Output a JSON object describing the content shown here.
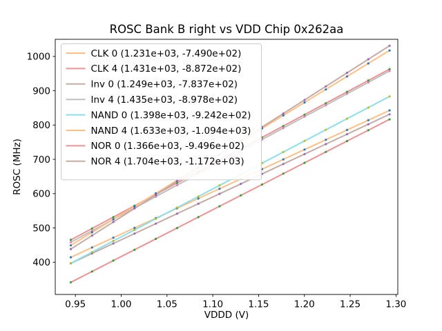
{
  "figure": {
    "title": "ROSC Bank B right vs VDD Chip 0x262aa",
    "xlabel": "VDDD (V)",
    "ylabel": "ROSC (MHz)",
    "background": "#ffffff",
    "frame_color": "#000000",
    "legend_border_color": "#cccccc"
  },
  "chart_data": {
    "type": "scatter",
    "title": "ROSC Bank B right vs VDD Chip 0x262aa",
    "xlabel": "VDDD (V)",
    "ylabel": "ROSC (MHz)",
    "xlim": [
      0.928,
      1.302
    ],
    "ylim": [
      306,
      1050
    ],
    "xticks": [
      0.95,
      1.0,
      1.05,
      1.1,
      1.15,
      1.2,
      1.25,
      1.3
    ],
    "yticks": [
      400,
      500,
      600,
      700,
      800,
      900,
      1000
    ],
    "grid": false,
    "legend_position": "upper left",
    "note": "Each series: scatter points plus linear fit line; legend shows (slope, intercept) of fit in MHz/V and MHz",
    "x": [
      0.945,
      0.9682,
      0.9914,
      1.0146,
      1.0378,
      1.061,
      1.0842,
      1.1074,
      1.1306,
      1.1538,
      1.177,
      1.2002,
      1.2234,
      1.2466,
      1.2698,
      1.293
    ],
    "series": [
      {
        "name": "CLK 0",
        "legend_label": "CLK 0 (1.231e+03, -7.490e+02)",
        "fit_slope": 1231.0,
        "fit_intercept": -749.0,
        "line_color": "#ffbf86",
        "marker_color": "#1f77b4",
        "y": [
          414.3,
          442.9,
          471.4,
          500.0,
          528.5,
          557.1,
          585.7,
          614.2,
          642.8,
          671.3,
          699.9,
          728.4,
          757.0,
          785.6,
          814.1,
          842.7
        ]
      },
      {
        "name": "CLK 4",
        "legend_label": "CLK 4 (1.431e+03, -8.872e+02)",
        "fit_slope": 1431.0,
        "fit_intercept": -887.2,
        "line_color": "#eb9394",
        "marker_color": "#2ca02c",
        "y": [
          465.1,
          498.3,
          531.5,
          564.7,
          597.9,
          631.1,
          664.3,
          697.5,
          730.7,
          763.9,
          797.1,
          830.3,
          863.5,
          896.7,
          929.9,
          963.1
        ]
      },
      {
        "name": "Inv 0",
        "legend_label": "Inv 0 (1.249e+03, -7.837e+02)",
        "fit_slope": 1249.0,
        "fit_intercept": -783.7,
        "line_color": "#c5aaa5",
        "marker_color": "#9467bd",
        "y": [
          396.6,
          425.6,
          454.6,
          483.5,
          512.5,
          541.5,
          570.5,
          599.4,
          628.4,
          657.4,
          686.4,
          715.3,
          744.3,
          773.3,
          802.3,
          831.3
        ]
      },
      {
        "name": "Inv 4",
        "legend_label": "Inv 4 (1.435e+03, -8.978e+02)",
        "fit_slope": 1435.0,
        "fit_intercept": -897.8,
        "line_color": "#bfbfbf",
        "marker_color": "#e377c2",
        "y": [
          458.3,
          491.6,
          524.9,
          558.2,
          591.4,
          624.7,
          658.0,
          691.3,
          724.6,
          757.9,
          791.2,
          824.5,
          857.8,
          891.1,
          924.4,
          957.7
        ]
      },
      {
        "name": "NAND 0",
        "legend_label": "NAND 0 (1.398e+03, -9.242e+02)",
        "fit_slope": 1398.0,
        "fit_intercept": -924.2,
        "line_color": "#8bdee7",
        "marker_color": "#bcbd22",
        "y": [
          396.9,
          429.3,
          461.8,
          494.2,
          526.6,
          559.1,
          591.5,
          623.9,
          656.4,
          688.8,
          721.2,
          753.7,
          786.1,
          818.5,
          851.0,
          883.4
        ]
      },
      {
        "name": "NAND 4",
        "legend_label": "NAND 4 (1.633e+03, -1.094e+03)",
        "fit_slope": 1633.0,
        "fit_intercept": -1094.0,
        "line_color": "#ffbf86",
        "marker_color": "#1f77b4",
        "y": [
          449.2,
          487.1,
          525.0,
          562.8,
          600.7,
          638.6,
          676.5,
          714.4,
          752.3,
          790.2,
          828.0,
          865.9,
          903.8,
          941.7,
          979.6,
          1017.5
        ]
      },
      {
        "name": "NOR 0",
        "legend_label": "NOR 0 (1.366e+03, -9.496e+02)",
        "fit_slope": 1366.0,
        "fit_intercept": -949.6,
        "line_color": "#eb9394",
        "marker_color": "#2ca02c",
        "y": [
          341.3,
          373.0,
          404.7,
          436.3,
          468.0,
          499.7,
          531.4,
          563.1,
          594.8,
          626.5,
          658.2,
          689.9,
          721.6,
          753.3,
          784.9,
          816.6
        ]
      },
      {
        "name": "NOR 4",
        "legend_label": "NOR 4 (1.704e+03, -1.172e+03)",
        "fit_slope": 1704.0,
        "fit_intercept": -1172.0,
        "line_color": "#c5aaa5",
        "marker_color": "#9467bd",
        "y": [
          438.3,
          477.8,
          517.3,
          556.9,
          596.4,
          635.9,
          675.5,
          715.0,
          754.5,
          794.1,
          833.6,
          873.1,
          912.7,
          952.2,
          991.7,
          1031.3
        ]
      }
    ]
  }
}
